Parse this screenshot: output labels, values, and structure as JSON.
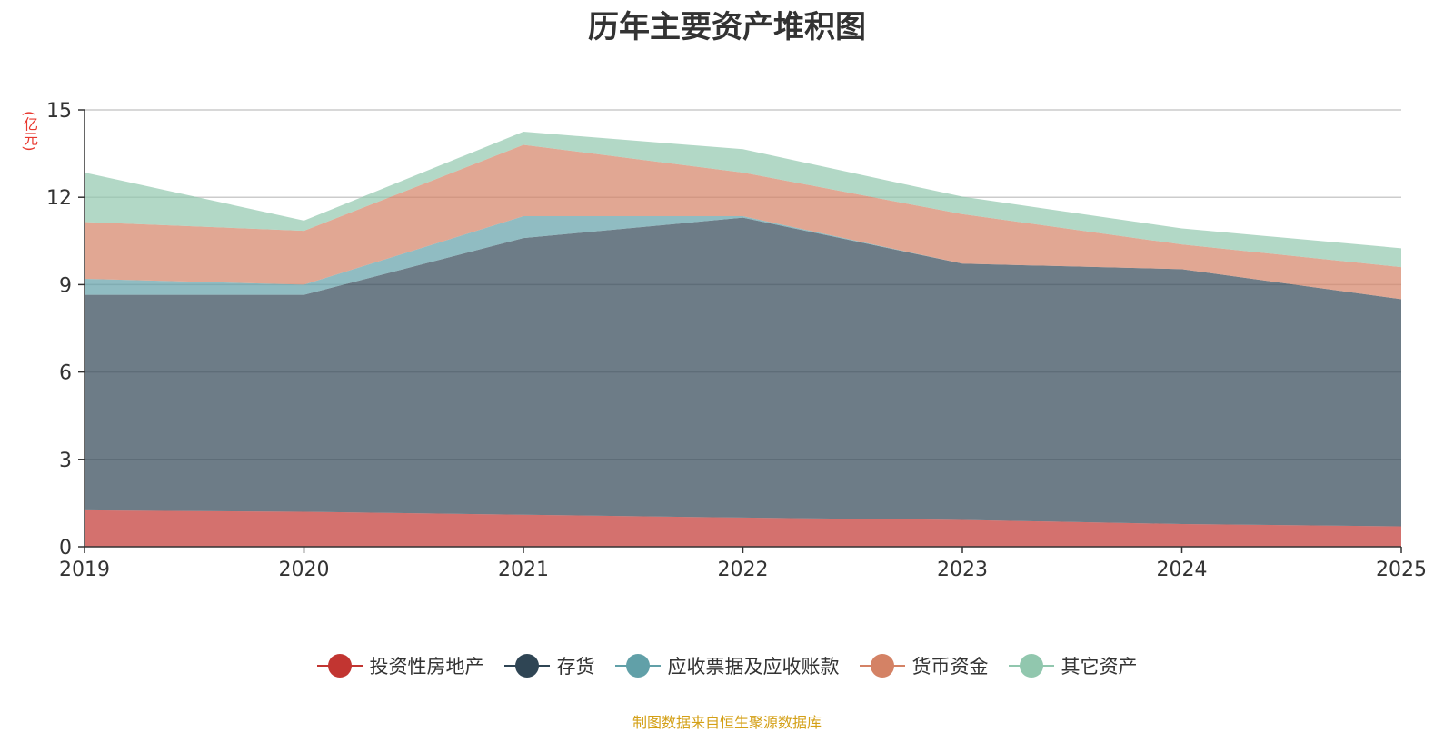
{
  "chart_data": {
    "type": "area",
    "stacked": true,
    "title": "历年主要资产堆积图",
    "y_unit": "(亿元)",
    "x": [
      "2019",
      "2020",
      "2021",
      "2022",
      "2023",
      "2024",
      "2025"
    ],
    "ylim": [
      0,
      15
    ],
    "y_ticks": [
      "0",
      "3",
      "6",
      "9",
      "12",
      "15"
    ],
    "grid": true,
    "legend_position": "bottom",
    "series": [
      {
        "name": "投资性房地产",
        "color": "#c23531",
        "values": [
          1.25,
          1.2,
          1.1,
          1.0,
          0.92,
          0.78,
          0.7
        ]
      },
      {
        "name": "存货",
        "color": "#2f4554",
        "values": [
          7.4,
          7.45,
          9.5,
          10.3,
          8.8,
          8.75,
          7.8
        ]
      },
      {
        "name": "应收票据及应收账款",
        "color": "#61a0a8",
        "values": [
          0.55,
          0.35,
          0.75,
          0.05,
          0.0,
          0.0,
          0.0
        ]
      },
      {
        "name": "货币资金",
        "color": "#d48265",
        "values": [
          1.95,
          1.85,
          2.45,
          1.5,
          1.7,
          0.85,
          1.1
        ]
      },
      {
        "name": "其它资产",
        "color": "#91c7ae",
        "values": [
          1.7,
          0.35,
          0.45,
          0.8,
          0.6,
          0.55,
          0.65
        ]
      }
    ]
  },
  "footer": {
    "source": "制图数据来自恒生聚源数据库"
  }
}
